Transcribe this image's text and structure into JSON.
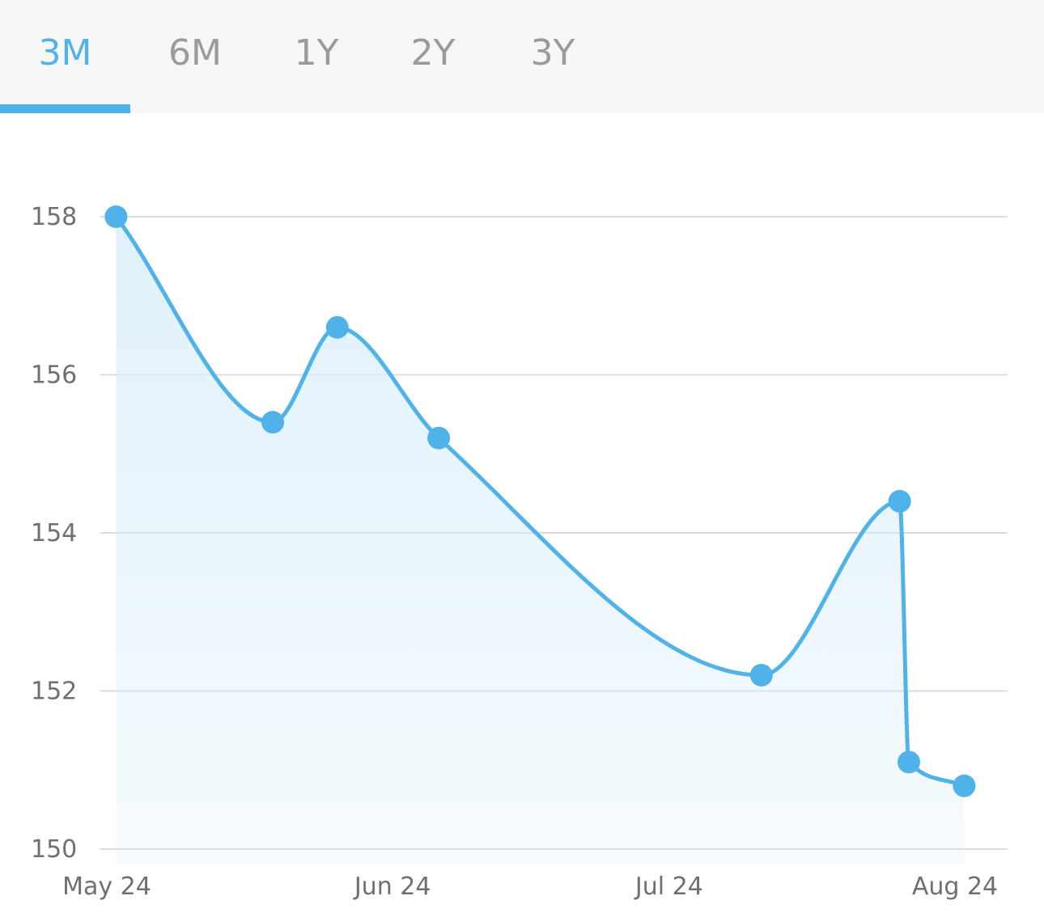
{
  "tabs": [
    {
      "label": "3M",
      "active": true
    },
    {
      "label": "6M",
      "active": false
    },
    {
      "label": "1Y",
      "active": false
    },
    {
      "label": "2Y",
      "active": false
    },
    {
      "label": "3Y",
      "active": false
    }
  ],
  "colors": {
    "accent": "#4fb3ea",
    "grid": "#dcdcdc",
    "fill_top": "#d9eefa",
    "tab_bar_bg": "#f6f6f6",
    "tab_inactive": "#9a9a9a"
  },
  "chart_data": {
    "type": "line",
    "smooth": true,
    "area_fill": true,
    "grid": "horizontal",
    "x_axis": {
      "type": "date",
      "range": [
        "2024-05-24",
        "2024-08-24"
      ],
      "ticks": [
        {
          "date": "2024-05-24",
          "label": "May 24"
        },
        {
          "date": "2024-06-24",
          "label": "Jun 24"
        },
        {
          "date": "2024-07-24",
          "label": "Jul 24"
        },
        {
          "date": "2024-08-24",
          "label": "Aug 24"
        }
      ]
    },
    "y_axis": {
      "range": [
        150,
        158
      ],
      "ticks": [
        150,
        152,
        154,
        156,
        158
      ]
    },
    "points": [
      {
        "date": "2024-05-25",
        "value": 158.0
      },
      {
        "date": "2024-06-11",
        "value": 155.4
      },
      {
        "date": "2024-06-18",
        "value": 156.6
      },
      {
        "date": "2024-06-29",
        "value": 155.2
      },
      {
        "date": "2024-08-03",
        "value": 152.2
      },
      {
        "date": "2024-08-18",
        "value": 154.4
      },
      {
        "date": "2024-08-19",
        "value": 151.1
      },
      {
        "date": "2024-08-25",
        "value": 150.8
      }
    ]
  }
}
